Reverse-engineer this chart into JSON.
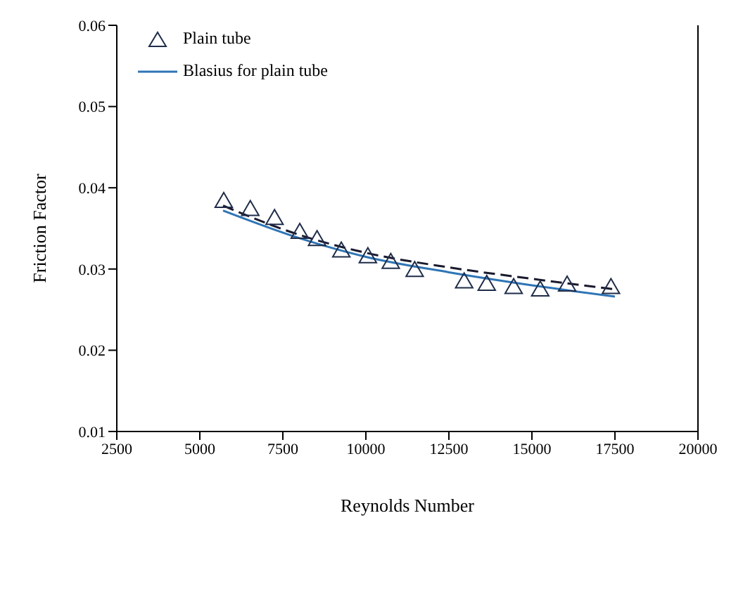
{
  "chart_data": {
    "type": "scatter",
    "xlabel": "Reynolds Number",
    "ylabel": "Friction Factor",
    "xlim": [
      2500,
      20000
    ],
    "xticks": [
      2500,
      5000,
      7500,
      10000,
      12500,
      15000,
      17500,
      20000
    ],
    "ylim": [
      0.01,
      0.06
    ],
    "yticks": [
      0.01,
      0.02,
      0.03,
      0.04,
      0.05,
      0.06
    ],
    "grid": false,
    "legend": "top left",
    "series": [
      {
        "name": "Plain tube",
        "marker": "triangle",
        "color": "#1f2d4a",
        "x": [
          5720,
          6520,
          7250,
          8010,
          8530,
          9260,
          10060,
          10750,
          11470,
          12960,
          13640,
          14450,
          15250,
          16060,
          17380
        ],
        "values": [
          0.0382,
          0.0372,
          0.0361,
          0.0344,
          0.0335,
          0.0321,
          0.0314,
          0.0307,
          0.0297,
          0.0283,
          0.028,
          0.0276,
          0.0273,
          0.0279,
          0.0276
        ]
      },
      {
        "name": "Blasius for plain tube",
        "type": "line",
        "line_style": "solid",
        "marker": "none",
        "color": "#2e75b6",
        "x": [
          5700,
          8000,
          10000,
          12500,
          15000,
          17500
        ],
        "values": [
          0.0372,
          0.0338,
          0.0315,
          0.0296,
          0.028,
          0.0266
        ]
      },
      {
        "type": "line",
        "line_style": "dashed",
        "marker": "none",
        "color": "#1a1a2e",
        "x": [
          5700,
          8000,
          10000,
          12500,
          15000,
          17500
        ],
        "values": [
          0.0378,
          0.0342,
          0.032,
          0.0302,
          0.0288,
          0.0275
        ]
      }
    ]
  }
}
